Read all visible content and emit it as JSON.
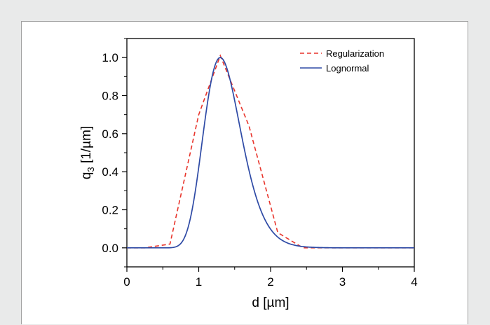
{
  "chart_data": {
    "type": "line",
    "xlabel": "d [µm]",
    "ylabel": "q3 [1/µm]",
    "ylabel_main": "q",
    "ylabel_sub": "3",
    "ylabel_unit": "[1/µm]",
    "xlim": [
      0,
      4
    ],
    "ylim": [
      -0.1,
      1.1
    ],
    "xticks": [
      0,
      1,
      2,
      3,
      4
    ],
    "xtick_labels": [
      "0",
      "1",
      "2",
      "3",
      "4"
    ],
    "yticks": [
      0.0,
      0.2,
      0.4,
      0.6,
      0.8,
      1.0
    ],
    "ytick_labels": [
      "0.0",
      "0.2",
      "0.4",
      "0.6",
      "0.8",
      "1.0"
    ],
    "grid": false,
    "legend_position": "top-right",
    "series": [
      {
        "name": "Regularization",
        "style": "dashed",
        "color": "#e8342b",
        "x": [
          0.0,
          0.25,
          0.6,
          1.0,
          1.3,
          1.7,
          2.1,
          2.45,
          3.0,
          4.0
        ],
        "y": [
          0.0,
          0.0,
          0.02,
          0.7,
          1.01,
          0.64,
          0.08,
          0.0,
          0.0,
          0.0
        ]
      },
      {
        "name": "Lognormal",
        "style": "solid",
        "color": "#2e4aa5",
        "curve": "lognormal",
        "peak_x": 1.3,
        "peak_y": 1.0,
        "x": [
          0.0,
          0.65,
          0.75,
          0.85,
          0.95,
          1.05,
          1.15,
          1.25,
          1.3,
          1.35,
          1.45,
          1.55,
          1.65,
          1.75,
          1.85,
          1.95,
          2.05,
          2.2,
          2.4,
          2.6,
          3.0,
          4.0
        ],
        "y": [
          0.0,
          0.0,
          0.02,
          0.11,
          0.3,
          0.57,
          0.83,
          0.98,
          1.0,
          0.98,
          0.88,
          0.72,
          0.55,
          0.39,
          0.26,
          0.16,
          0.09,
          0.04,
          0.01,
          0.0,
          0.0,
          0.0
        ]
      }
    ]
  }
}
